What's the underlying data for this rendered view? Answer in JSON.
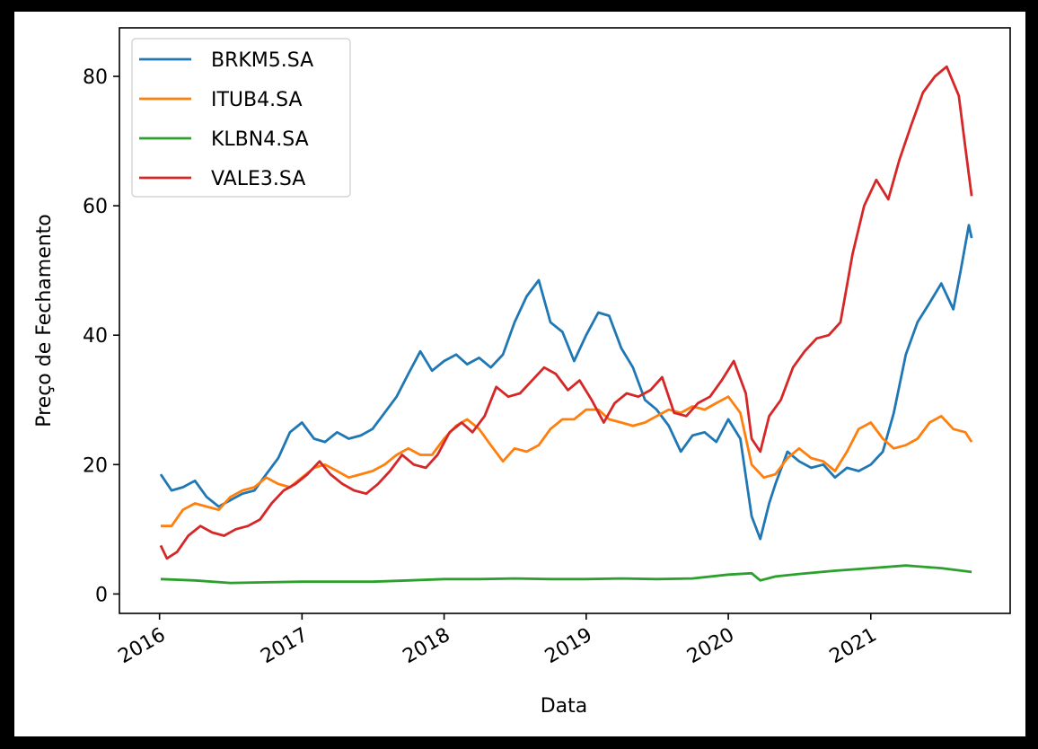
{
  "chart_data": {
    "type": "line",
    "title": "",
    "xlabel": "Data",
    "ylabel": "Preço de Fechamento",
    "x_ticks": [
      "2016",
      "2017",
      "2018",
      "2019",
      "2020",
      "2021"
    ],
    "y_ticks": [
      0,
      20,
      40,
      60,
      80
    ],
    "xlim": [
      "2015-09-20",
      "2021-12-25"
    ],
    "ylim": [
      -3,
      87.5
    ],
    "grid": false,
    "legend_position": "upper left",
    "series": [
      {
        "name": "BRKM5.SA",
        "color": "#1f77b4",
        "points": [
          [
            "2016-01-04",
            18.5
          ],
          [
            "2016-02-01",
            16.0
          ],
          [
            "2016-03-01",
            16.5
          ],
          [
            "2016-04-01",
            17.5
          ],
          [
            "2016-05-01",
            15.0
          ],
          [
            "2016-06-01",
            13.5
          ],
          [
            "2016-07-01",
            14.5
          ],
          [
            "2016-08-01",
            15.5
          ],
          [
            "2016-09-01",
            16.0
          ],
          [
            "2016-10-01",
            18.5
          ],
          [
            "2016-11-01",
            21.0
          ],
          [
            "2016-12-01",
            25.0
          ],
          [
            "2017-01-01",
            26.5
          ],
          [
            "2017-02-01",
            24.0
          ],
          [
            "2017-03-01",
            23.5
          ],
          [
            "2017-04-01",
            25.0
          ],
          [
            "2017-05-01",
            24.0
          ],
          [
            "2017-06-01",
            24.5
          ],
          [
            "2017-07-01",
            25.5
          ],
          [
            "2017-08-01",
            28.0
          ],
          [
            "2017-09-01",
            30.5
          ],
          [
            "2017-10-01",
            34.0
          ],
          [
            "2017-11-01",
            37.5
          ],
          [
            "2017-12-01",
            34.5
          ],
          [
            "2018-01-01",
            36.0
          ],
          [
            "2018-02-01",
            37.0
          ],
          [
            "2018-03-01",
            35.5
          ],
          [
            "2018-04-01",
            36.5
          ],
          [
            "2018-05-01",
            35.0
          ],
          [
            "2018-06-01",
            37.0
          ],
          [
            "2018-07-01",
            42.0
          ],
          [
            "2018-08-01",
            46.0
          ],
          [
            "2018-09-01",
            48.5
          ],
          [
            "2018-10-01",
            42.0
          ],
          [
            "2018-11-01",
            40.5
          ],
          [
            "2018-12-01",
            36.0
          ],
          [
            "2019-01-01",
            40.0
          ],
          [
            "2019-02-01",
            43.5
          ],
          [
            "2019-03-01",
            43.0
          ],
          [
            "2019-04-01",
            38.0
          ],
          [
            "2019-05-01",
            35.0
          ],
          [
            "2019-06-01",
            30.0
          ],
          [
            "2019-07-01",
            28.5
          ],
          [
            "2019-08-01",
            26.0
          ],
          [
            "2019-09-01",
            22.0
          ],
          [
            "2019-10-01",
            24.5
          ],
          [
            "2019-11-01",
            25.0
          ],
          [
            "2019-12-01",
            23.5
          ],
          [
            "2020-01-01",
            27.0
          ],
          [
            "2020-02-01",
            24.0
          ],
          [
            "2020-03-01",
            12.0
          ],
          [
            "2020-03-23",
            8.5
          ],
          [
            "2020-04-15",
            14.0
          ],
          [
            "2020-05-01",
            17.0
          ],
          [
            "2020-06-01",
            22.0
          ],
          [
            "2020-07-01",
            20.5
          ],
          [
            "2020-08-01",
            19.5
          ],
          [
            "2020-09-01",
            20.0
          ],
          [
            "2020-10-01",
            18.0
          ],
          [
            "2020-11-01",
            19.5
          ],
          [
            "2020-12-01",
            19.0
          ],
          [
            "2021-01-01",
            20.0
          ],
          [
            "2021-02-01",
            22.0
          ],
          [
            "2021-03-01",
            28.0
          ],
          [
            "2021-04-01",
            37.0
          ],
          [
            "2021-05-01",
            42.0
          ],
          [
            "2021-06-01",
            45.0
          ],
          [
            "2021-07-01",
            48.0
          ],
          [
            "2021-08-01",
            44.0
          ],
          [
            "2021-08-20",
            50.0
          ],
          [
            "2021-09-10",
            57.0
          ],
          [
            "2021-09-17",
            55.0
          ]
        ]
      },
      {
        "name": "ITUB4.SA",
        "color": "#ff7f0e",
        "points": [
          [
            "2016-01-04",
            10.5
          ],
          [
            "2016-02-01",
            10.5
          ],
          [
            "2016-03-01",
            13.0
          ],
          [
            "2016-04-01",
            14.0
          ],
          [
            "2016-05-01",
            13.5
          ],
          [
            "2016-06-01",
            13.0
          ],
          [
            "2016-07-01",
            15.0
          ],
          [
            "2016-08-01",
            16.0
          ],
          [
            "2016-09-01",
            16.5
          ],
          [
            "2016-10-01",
            18.0
          ],
          [
            "2016-11-01",
            17.0
          ],
          [
            "2016-12-01",
            16.5
          ],
          [
            "2017-01-01",
            18.0
          ],
          [
            "2017-02-01",
            19.5
          ],
          [
            "2017-03-01",
            20.0
          ],
          [
            "2017-04-01",
            19.0
          ],
          [
            "2017-05-01",
            18.0
          ],
          [
            "2017-06-01",
            18.5
          ],
          [
            "2017-07-01",
            19.0
          ],
          [
            "2017-08-01",
            20.0
          ],
          [
            "2017-09-01",
            21.5
          ],
          [
            "2017-10-01",
            22.5
          ],
          [
            "2017-11-01",
            21.5
          ],
          [
            "2017-12-01",
            21.5
          ],
          [
            "2018-01-01",
            24.0
          ],
          [
            "2018-02-01",
            26.0
          ],
          [
            "2018-03-01",
            27.0
          ],
          [
            "2018-04-01",
            25.5
          ],
          [
            "2018-05-01",
            23.0
          ],
          [
            "2018-06-01",
            20.5
          ],
          [
            "2018-07-01",
            22.5
          ],
          [
            "2018-08-01",
            22.0
          ],
          [
            "2018-09-01",
            23.0
          ],
          [
            "2018-10-01",
            25.5
          ],
          [
            "2018-11-01",
            27.0
          ],
          [
            "2018-12-01",
            27.0
          ],
          [
            "2019-01-01",
            28.5
          ],
          [
            "2019-02-01",
            28.5
          ],
          [
            "2019-03-01",
            27.0
          ],
          [
            "2019-04-01",
            26.5
          ],
          [
            "2019-05-01",
            26.0
          ],
          [
            "2019-06-01",
            26.5
          ],
          [
            "2019-07-01",
            27.5
          ],
          [
            "2019-08-01",
            28.5
          ],
          [
            "2019-09-01",
            28.0
          ],
          [
            "2019-10-01",
            29.0
          ],
          [
            "2019-11-01",
            28.5
          ],
          [
            "2019-12-01",
            29.5
          ],
          [
            "2020-01-01",
            30.5
          ],
          [
            "2020-02-01",
            28.0
          ],
          [
            "2020-03-01",
            20.0
          ],
          [
            "2020-04-01",
            18.0
          ],
          [
            "2020-05-01",
            18.5
          ],
          [
            "2020-06-01",
            21.0
          ],
          [
            "2020-07-01",
            22.5
          ],
          [
            "2020-08-01",
            21.0
          ],
          [
            "2020-09-01",
            20.5
          ],
          [
            "2020-10-01",
            19.0
          ],
          [
            "2020-11-01",
            22.0
          ],
          [
            "2020-12-01",
            25.5
          ],
          [
            "2021-01-01",
            26.5
          ],
          [
            "2021-02-01",
            24.0
          ],
          [
            "2021-03-01",
            22.5
          ],
          [
            "2021-04-01",
            23.0
          ],
          [
            "2021-05-01",
            24.0
          ],
          [
            "2021-06-01",
            26.5
          ],
          [
            "2021-07-01",
            27.5
          ],
          [
            "2021-08-01",
            25.5
          ],
          [
            "2021-09-01",
            25.0
          ],
          [
            "2021-09-17",
            23.5
          ]
        ]
      },
      {
        "name": "KLBN4.SA",
        "color": "#2ca02c",
        "points": [
          [
            "2016-01-04",
            2.3
          ],
          [
            "2016-04-01",
            2.1
          ],
          [
            "2016-07-01",
            1.7
          ],
          [
            "2016-10-01",
            1.8
          ],
          [
            "2017-01-01",
            1.9
          ],
          [
            "2017-04-01",
            1.9
          ],
          [
            "2017-07-01",
            1.9
          ],
          [
            "2017-10-01",
            2.1
          ],
          [
            "2018-01-01",
            2.3
          ],
          [
            "2018-04-01",
            2.3
          ],
          [
            "2018-07-01",
            2.4
          ],
          [
            "2018-10-01",
            2.3
          ],
          [
            "2019-01-01",
            2.3
          ],
          [
            "2019-04-01",
            2.4
          ],
          [
            "2019-07-01",
            2.3
          ],
          [
            "2019-10-01",
            2.4
          ],
          [
            "2020-01-01",
            3.0
          ],
          [
            "2020-03-01",
            3.2
          ],
          [
            "2020-03-23",
            2.1
          ],
          [
            "2020-05-01",
            2.7
          ],
          [
            "2020-07-01",
            3.1
          ],
          [
            "2020-10-01",
            3.6
          ],
          [
            "2021-01-01",
            4.0
          ],
          [
            "2021-04-01",
            4.4
          ],
          [
            "2021-07-01",
            4.0
          ],
          [
            "2021-09-17",
            3.4
          ]
        ]
      },
      {
        "name": "VALE3.SA",
        "color": "#d62728",
        "points": [
          [
            "2016-01-04",
            7.5
          ],
          [
            "2016-01-20",
            5.5
          ],
          [
            "2016-02-15",
            6.5
          ],
          [
            "2016-03-15",
            9.0
          ],
          [
            "2016-04-15",
            10.5
          ],
          [
            "2016-05-15",
            9.5
          ],
          [
            "2016-06-15",
            9.0
          ],
          [
            "2016-07-15",
            10.0
          ],
          [
            "2016-08-15",
            10.5
          ],
          [
            "2016-09-15",
            11.5
          ],
          [
            "2016-10-15",
            14.0
          ],
          [
            "2016-11-15",
            16.0
          ],
          [
            "2016-12-15",
            17.0
          ],
          [
            "2017-01-15",
            18.5
          ],
          [
            "2017-02-15",
            20.5
          ],
          [
            "2017-03-15",
            18.5
          ],
          [
            "2017-04-15",
            17.0
          ],
          [
            "2017-05-15",
            16.0
          ],
          [
            "2017-06-15",
            15.5
          ],
          [
            "2017-07-15",
            17.0
          ],
          [
            "2017-08-15",
            19.0
          ],
          [
            "2017-09-15",
            21.5
          ],
          [
            "2017-10-15",
            20.0
          ],
          [
            "2017-11-15",
            19.5
          ],
          [
            "2017-12-15",
            21.5
          ],
          [
            "2018-01-15",
            25.0
          ],
          [
            "2018-02-15",
            26.5
          ],
          [
            "2018-03-15",
            25.0
          ],
          [
            "2018-04-15",
            27.5
          ],
          [
            "2018-05-15",
            32.0
          ],
          [
            "2018-06-15",
            30.5
          ],
          [
            "2018-07-15",
            31.0
          ],
          [
            "2018-08-15",
            33.0
          ],
          [
            "2018-09-15",
            35.0
          ],
          [
            "2018-10-15",
            34.0
          ],
          [
            "2018-11-15",
            31.5
          ],
          [
            "2018-12-15",
            33.0
          ],
          [
            "2019-01-15",
            30.0
          ],
          [
            "2019-02-15",
            26.5
          ],
          [
            "2019-03-15",
            29.5
          ],
          [
            "2019-04-15",
            31.0
          ],
          [
            "2019-05-15",
            30.5
          ],
          [
            "2019-06-15",
            31.5
          ],
          [
            "2019-07-15",
            33.5
          ],
          [
            "2019-08-15",
            28.0
          ],
          [
            "2019-09-15",
            27.5
          ],
          [
            "2019-10-15",
            29.5
          ],
          [
            "2019-11-15",
            30.5
          ],
          [
            "2019-12-15",
            33.0
          ],
          [
            "2020-01-15",
            36.0
          ],
          [
            "2020-02-15",
            31.0
          ],
          [
            "2020-03-01",
            24.0
          ],
          [
            "2020-03-23",
            22.0
          ],
          [
            "2020-04-15",
            27.5
          ],
          [
            "2020-05-15",
            30.0
          ],
          [
            "2020-06-15",
            35.0
          ],
          [
            "2020-07-15",
            37.5
          ],
          [
            "2020-08-15",
            39.5
          ],
          [
            "2020-09-15",
            40.0
          ],
          [
            "2020-10-15",
            42.0
          ],
          [
            "2020-11-15",
            52.5
          ],
          [
            "2020-12-15",
            60.0
          ],
          [
            "2021-01-15",
            64.0
          ],
          [
            "2021-02-15",
            61.0
          ],
          [
            "2021-03-15",
            67.0
          ],
          [
            "2021-04-15",
            72.5
          ],
          [
            "2021-05-15",
            77.5
          ],
          [
            "2021-06-15",
            80.0
          ],
          [
            "2021-07-15",
            81.5
          ],
          [
            "2021-08-15",
            77.0
          ],
          [
            "2021-09-01",
            69.0
          ],
          [
            "2021-09-17",
            61.5
          ]
        ]
      }
    ]
  }
}
